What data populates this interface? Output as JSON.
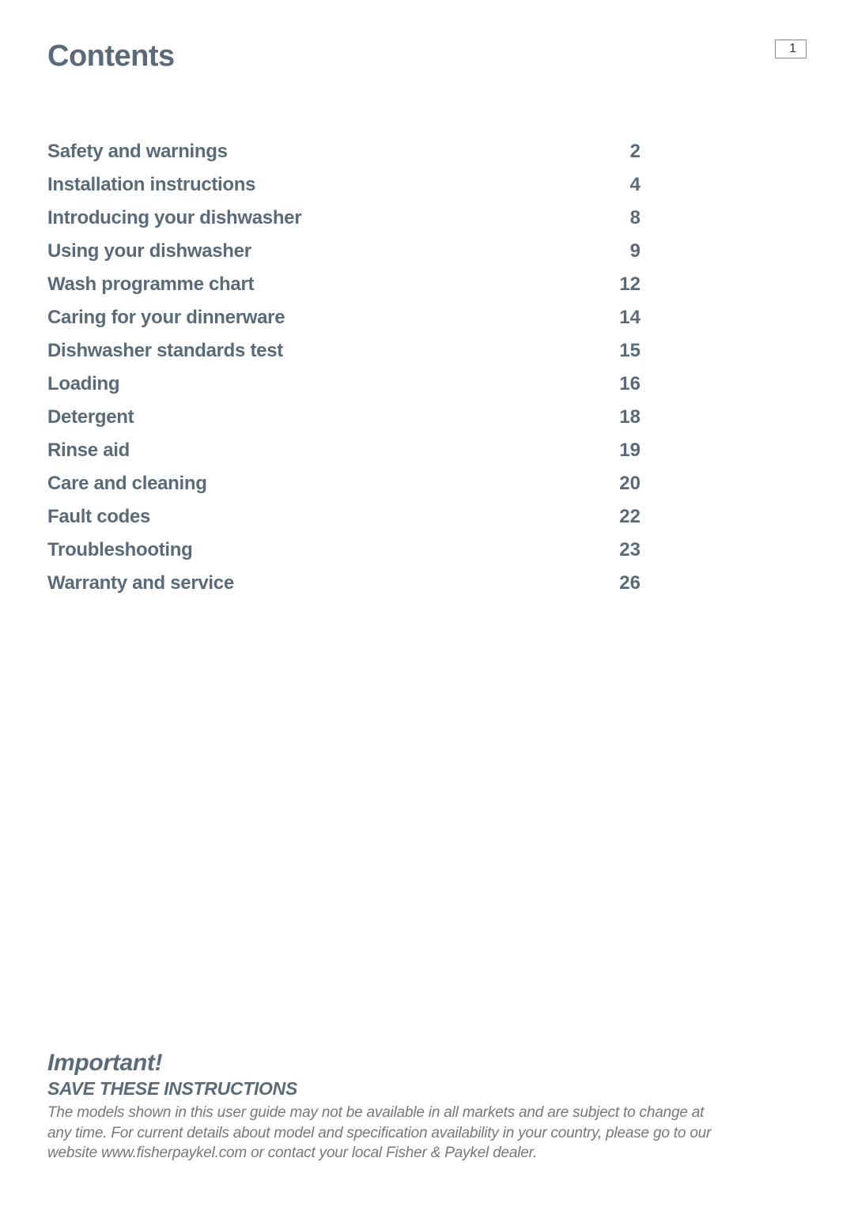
{
  "header": {
    "title": "Contents",
    "page_number": "1"
  },
  "toc": {
    "items": [
      {
        "label": "Safety and warnings",
        "page": "2"
      },
      {
        "label": "Installation instructions",
        "page": "4"
      },
      {
        "label": "Introducing your dishwasher",
        "page": "8"
      },
      {
        "label": "Using your dishwasher",
        "page": "9"
      },
      {
        "label": "Wash programme chart",
        "page": "12"
      },
      {
        "label": "Caring for your dinnerware",
        "page": "14"
      },
      {
        "label": "Dishwasher standards test",
        "page": "15"
      },
      {
        "label": "Loading",
        "page": "16"
      },
      {
        "label": "Detergent",
        "page": "18"
      },
      {
        "label": "Rinse aid",
        "page": "19"
      },
      {
        "label": "Care and cleaning",
        "page": "20"
      },
      {
        "label": "Fault codes",
        "page": "22"
      },
      {
        "label": "Troubleshooting",
        "page": "23"
      },
      {
        "label": "Warranty and service",
        "page": "26"
      }
    ]
  },
  "footer": {
    "important": "Important!",
    "save": "SAVE THESE INSTRUCTIONS",
    "disclaimer": "The models shown in this user guide may not be available in all markets and are subject to change at any time. For current details about model and specification availability in your country, please go to our website www.fisherpaykel.com or contact your local Fisher & Paykel dealer."
  },
  "styling": {
    "heading_color": "#5a6a78",
    "body_text_color": "#777777",
    "background_color": "#ffffff",
    "page_box_border_color": "#888888",
    "title_fontsize": 38,
    "toc_fontsize": 24,
    "important_fontsize": 30,
    "save_fontsize": 23,
    "disclaimer_fontsize": 19
  }
}
